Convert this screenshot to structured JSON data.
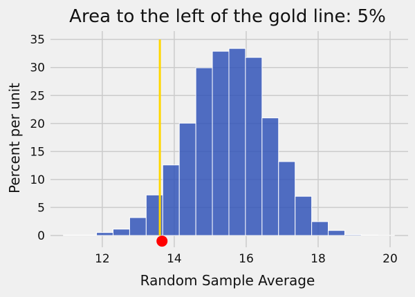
{
  "chart_data": {
    "type": "bar",
    "title": "Area to the left of the gold line: 5%",
    "xlabel": "Random Sample Average",
    "ylabel": "Percent per unit",
    "xlim": [
      10.56,
      20.5
    ],
    "ylim": [
      -2.1,
      36.5
    ],
    "xticks": [
      12,
      14,
      16,
      18,
      20
    ],
    "yticks": [
      0,
      5,
      10,
      15,
      20,
      25,
      30,
      35
    ],
    "grid": true,
    "bin_edges": [
      10.92,
      11.38,
      11.84,
      12.3,
      12.76,
      13.22,
      13.68,
      14.14,
      14.6,
      15.06,
      15.52,
      15.98,
      16.44,
      16.9,
      17.36,
      17.82,
      18.28,
      18.74,
      19.2,
      19.66,
      20.12
    ],
    "values": [
      0.08,
      0.08,
      0.53,
      1.14,
      3.2,
      7.24,
      12.6,
      20.06,
      29.95,
      32.9,
      33.4,
      31.8,
      21.0,
      13.2,
      7.0,
      2.48,
      0.9,
      0.16,
      0.08,
      0.04
    ],
    "gold_line_x": 13.6,
    "red_point": {
      "x": 13.66,
      "y": -1
    },
    "colors": {
      "bars": "#3355b8",
      "bar_edge": "#ffffff",
      "gold_line": "#ffd700",
      "red_point": "#ff0000",
      "grid": "#cbcbcb",
      "background": "#f0f0f0"
    }
  }
}
